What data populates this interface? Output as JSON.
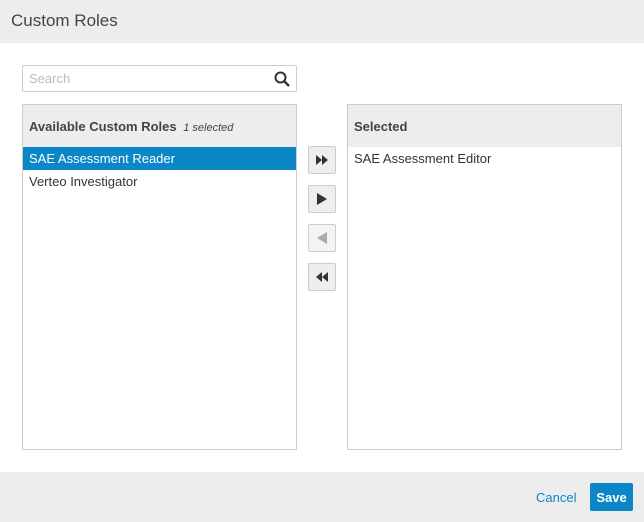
{
  "dialog": {
    "title": "Custom Roles"
  },
  "search": {
    "placeholder": "Search",
    "value": "",
    "icon": "search-icon"
  },
  "available": {
    "header": "Available Custom Roles",
    "count": "1 selected",
    "items": [
      {
        "label": "SAE Assessment Reader",
        "selected": true
      },
      {
        "label": "Verteo Investigator",
        "selected": false
      }
    ]
  },
  "selected": {
    "header": "Selected",
    "items": [
      {
        "label": "SAE Assessment Editor"
      }
    ]
  },
  "transfer_buttons": [
    {
      "icon": "double-right-icon",
      "enabled": true
    },
    {
      "icon": "right-icon",
      "enabled": true
    },
    {
      "icon": "left-icon",
      "enabled": false
    },
    {
      "icon": "double-left-icon",
      "enabled": true
    }
  ],
  "footer": {
    "cancel_label": "Cancel",
    "save_label": "Save"
  },
  "colors": {
    "accent": "#0b86c6"
  }
}
